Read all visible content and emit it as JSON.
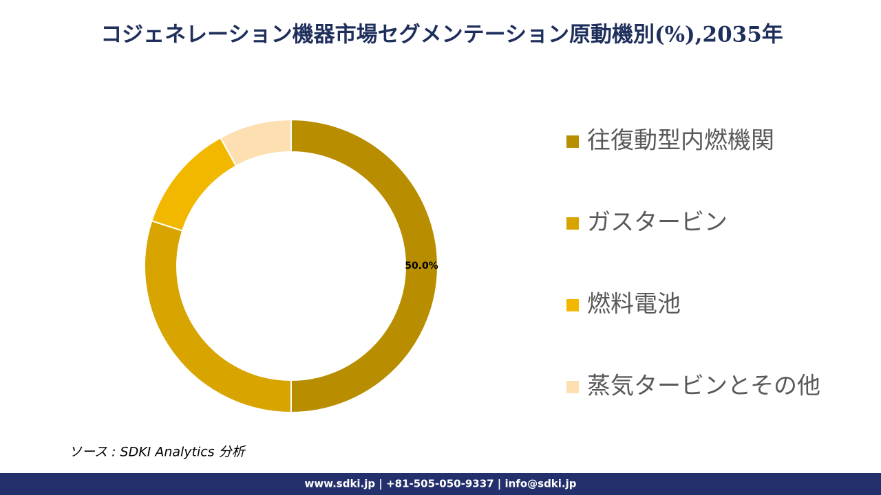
{
  "chart_data": {
    "type": "donut",
    "title": "コジェネレーション機器市場セグメンテーション原動機別(%),2035年",
    "categories": [
      "往復動型内燃機関",
      "ガスタービン",
      "燃料電池",
      "蒸気タービンとその他"
    ],
    "values": [
      50,
      30,
      12,
      8
    ],
    "value_labels": [
      "50.0%",
      null,
      null,
      null
    ],
    "colors": [
      "#b88e00",
      "#d7a400",
      "#f2b800",
      "#fddfb2"
    ],
    "legend_position": "right"
  },
  "source": "ソース : SDKI Analytics 分析",
  "footer": "www.sdki.jp | +81-505-050-9337 | info@sdki.jp"
}
